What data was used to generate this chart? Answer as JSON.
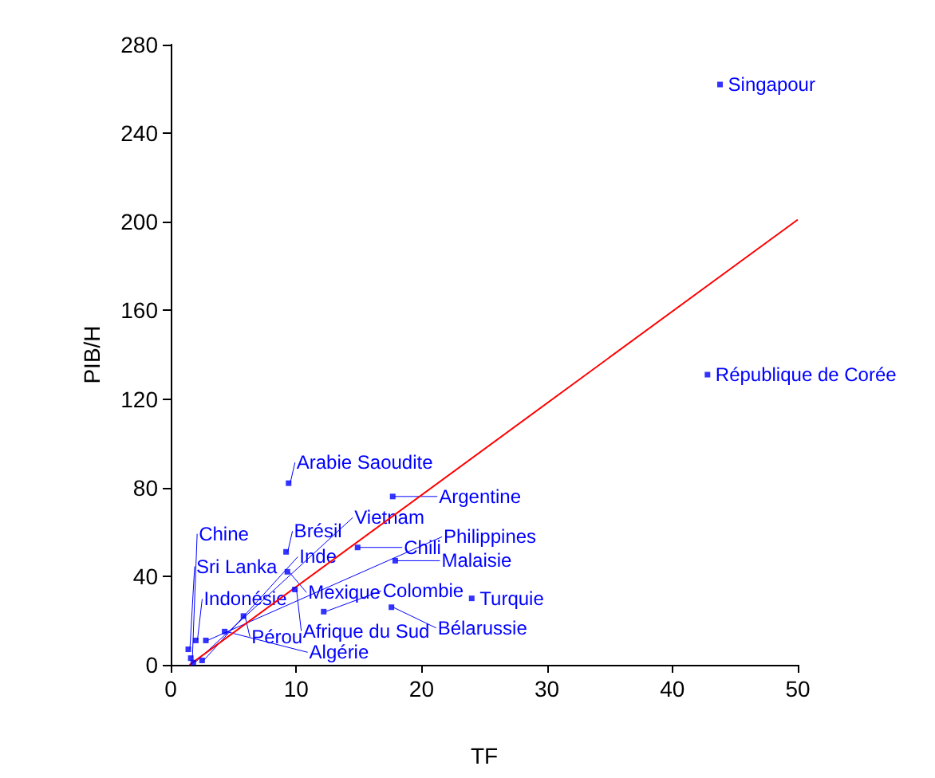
{
  "chart_data": {
    "type": "scatter",
    "xlabel": "TF",
    "ylabel": "PIB/H",
    "xlim": [
      0,
      50
    ],
    "xticks": [
      0,
      10,
      20,
      30,
      40,
      50
    ],
    "ylim": [
      0,
      280
    ],
    "yticks": [
      0,
      40,
      80,
      120,
      160,
      200,
      240,
      280
    ],
    "grid": false,
    "marker": "square",
    "series": [
      {
        "type": "scatter",
        "color": "#0000ff",
        "x": [
          43.8,
          42.8,
          9.4,
          17.7,
          9.2,
          14.9,
          17.9,
          9.3,
          9.9,
          24.0,
          12.2,
          17.6,
          5.8,
          4.3,
          2.0,
          2.8,
          1.4,
          1.6,
          2.5,
          1.8
        ],
        "values": [
          262,
          131,
          82,
          76,
          51,
          53,
          47,
          42,
          34,
          30,
          24,
          26,
          22,
          15,
          11,
          11,
          7,
          3,
          2,
          1
        ]
      },
      {
        "type": "line",
        "marker": "none",
        "color": "#ff0000",
        "x": [
          1.5,
          50
        ],
        "values": [
          0,
          201
        ]
      }
    ],
    "annotations": [
      {
        "text": "Singapour",
        "x": 43.8,
        "y": 262
      },
      {
        "text": "République de Corée",
        "x": 42.8,
        "y": 131
      },
      {
        "text": "Arabie Saoudite",
        "x": 9.4,
        "y": 82
      },
      {
        "text": "Argentine",
        "x": 17.7,
        "y": 76
      },
      {
        "text": "Brésil",
        "x": 9.2,
        "y": 51
      },
      {
        "text": "Chili",
        "x": 14.9,
        "y": 53
      },
      {
        "text": "Malaisie",
        "x": 17.9,
        "y": 47
      },
      {
        "text": "Mexique",
        "x": 9.3,
        "y": 42
      },
      {
        "text": "Afrique du Sud",
        "x": 9.9,
        "y": 34
      },
      {
        "text": "Turquie",
        "x": 24.0,
        "y": 30
      },
      {
        "text": "Colombie",
        "x": 12.2,
        "y": 24
      },
      {
        "text": "Bélarussie",
        "x": 17.6,
        "y": 26
      },
      {
        "text": "Pérou",
        "x": 5.8,
        "y": 22
      },
      {
        "text": "Algérie",
        "x": 4.3,
        "y": 15
      },
      {
        "text": "Indonésie",
        "x": 2.0,
        "y": 11
      },
      {
        "text": "Philippines",
        "x": 2.8,
        "y": 11
      },
      {
        "text": "Sri Lanka",
        "x": 1.4,
        "y": 7
      },
      {
        "text": "Chine",
        "x": 1.6,
        "y": 3
      },
      {
        "text": "Inde",
        "x": 2.5,
        "y": 2
      },
      {
        "text": "Vietnam",
        "x": 1.8,
        "y": 1
      }
    ]
  }
}
